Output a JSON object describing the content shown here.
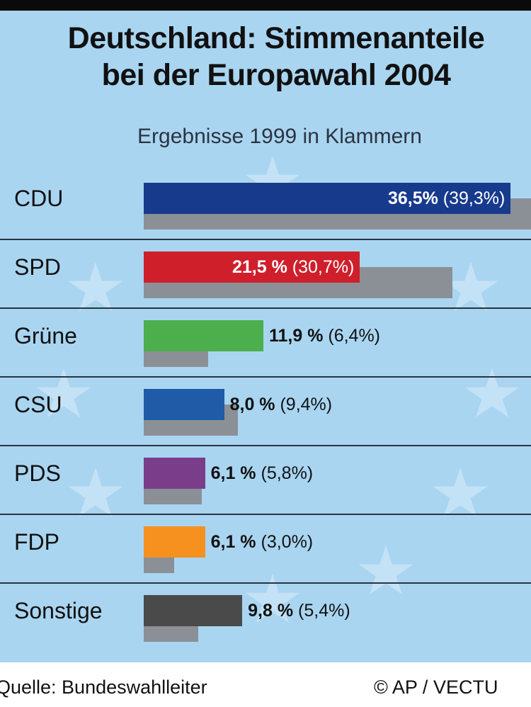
{
  "chart_data": {
    "type": "bar",
    "title": "Deutschland: Stimmenanteile bei der Europawahl 2004",
    "title_lines": [
      "Deutschland: Stimmenanteile",
      "bei der Europawahl 2004"
    ],
    "subtitle": "Ergebnisse 1999 in Klammern",
    "categories": [
      "CDU",
      "SPD",
      "Grüne",
      "CSU",
      "PDS",
      "FDP",
      "Sonstige"
    ],
    "series": [
      {
        "name": "2004",
        "values": [
          36.5,
          21.5,
          11.9,
          8.0,
          6.1,
          6.1,
          9.8
        ]
      },
      {
        "name": "1999",
        "values": [
          39.3,
          30.7,
          6.4,
          9.4,
          5.8,
          3.0,
          5.4
        ],
        "color": "#8b9097"
      }
    ],
    "labels_2004": [
      "36,5%",
      "21,5 %",
      "11,9 %",
      "8,0 %",
      "6,1 %",
      "6,1 %",
      "9,8 %"
    ],
    "labels_1999": [
      "(39,3%)",
      "(30,7%)",
      "(6,4%)",
      "(9,4%)",
      "(5,8%)",
      "(3,0%)",
      "(5,4%)"
    ],
    "colors": [
      "#173a8c",
      "#cf1f2b",
      "#4cae4c",
      "#1f5ba6",
      "#7a3d8a",
      "#f6901e",
      "#4a4a4a"
    ],
    "xlim": [
      0,
      38.5
    ],
    "xlabel": "",
    "ylabel": "",
    "grid": false
  },
  "footer": {
    "source": "Quelle: Bundeswahlleiter",
    "copyright": "© AP / VECTU"
  }
}
